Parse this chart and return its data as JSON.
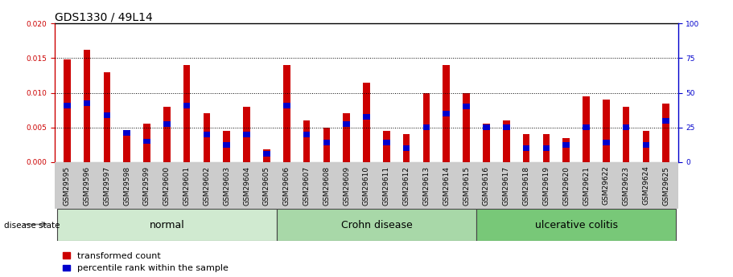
{
  "title": "GDS1330 / 49L14",
  "samples": [
    "GSM29595",
    "GSM29596",
    "GSM29597",
    "GSM29598",
    "GSM29599",
    "GSM29600",
    "GSM29601",
    "GSM29602",
    "GSM29603",
    "GSM29604",
    "GSM29605",
    "GSM29606",
    "GSM29607",
    "GSM29608",
    "GSM29609",
    "GSM29610",
    "GSM29611",
    "GSM29612",
    "GSM29613",
    "GSM29614",
    "GSM29615",
    "GSM29616",
    "GSM29617",
    "GSM29618",
    "GSM29619",
    "GSM29620",
    "GSM29621",
    "GSM29622",
    "GSM29623",
    "GSM29624",
    "GSM29625"
  ],
  "transformed_count": [
    0.0148,
    0.0162,
    0.013,
    0.004,
    0.0055,
    0.008,
    0.014,
    0.007,
    0.0045,
    0.008,
    0.0018,
    0.014,
    0.006,
    0.005,
    0.007,
    0.0115,
    0.0045,
    0.004,
    0.01,
    0.014,
    0.01,
    0.0055,
    0.006,
    0.004,
    0.004,
    0.0035,
    0.0095,
    0.009,
    0.008,
    0.0045,
    0.0085
  ],
  "percentile_rank_scaled": [
    0.0082,
    0.0085,
    0.0068,
    0.0042,
    0.003,
    0.0055,
    0.0082,
    0.004,
    0.0025,
    0.004,
    0.0012,
    0.0082,
    0.004,
    0.0028,
    0.0055,
    0.0065,
    0.0028,
    0.002,
    0.005,
    0.007,
    0.008,
    0.005,
    0.005,
    0.002,
    0.002,
    0.0025,
    0.005,
    0.0028,
    0.005,
    0.0025,
    0.006
  ],
  "groups": [
    {
      "label": "normal",
      "start": 0,
      "end": 10,
      "color": "#d0ead0"
    },
    {
      "label": "Crohn disease",
      "start": 11,
      "end": 20,
      "color": "#a8d8a8"
    },
    {
      "label": "ulcerative colitis",
      "start": 21,
      "end": 30,
      "color": "#78c878"
    }
  ],
  "ylim_left": [
    0,
    0.02
  ],
  "ylim_right": [
    0,
    100
  ],
  "yticks_left": [
    0,
    0.005,
    0.01,
    0.015,
    0.02
  ],
  "yticks_right": [
    0,
    25,
    50,
    75,
    100
  ],
  "bar_color_red": "#cc0000",
  "bar_color_blue": "#0000cc",
  "title_fontsize": 10,
  "tick_fontsize": 6.5,
  "label_fontsize": 8,
  "group_label_fontsize": 9,
  "disease_state_label": "disease state",
  "legend_red": "transformed count",
  "legend_blue": "percentile rank within the sample",
  "bar_width": 0.35,
  "blue_bar_height": 0.0008
}
